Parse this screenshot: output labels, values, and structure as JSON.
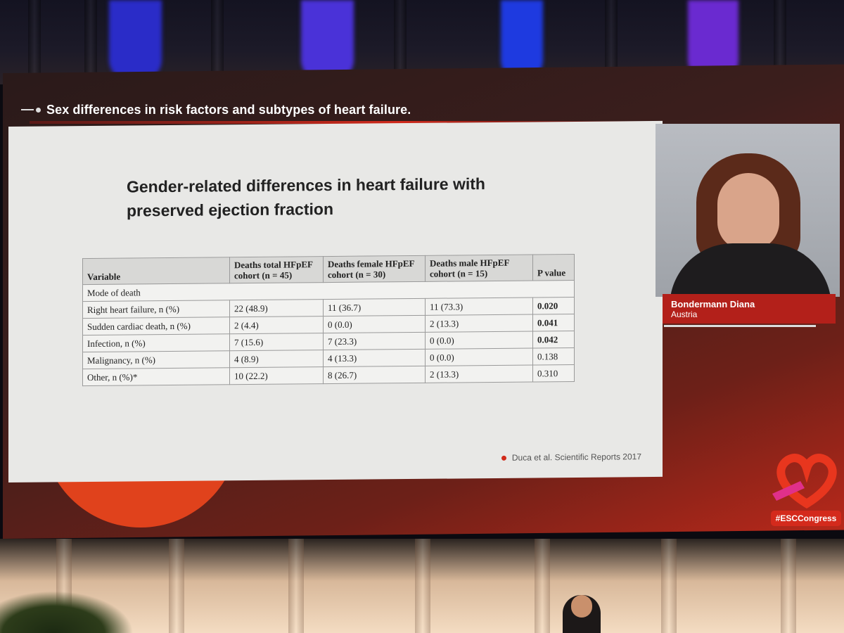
{
  "header": {
    "title": "Sex differences in risk factors and subtypes of heart failure."
  },
  "slide": {
    "title": "Gender-related differences in heart failure with preserved ejection fraction",
    "table": {
      "headers": [
        "Variable",
        "Deaths total HFpEF cohort (n = 45)",
        "Deaths female HFpEF cohort (n = 30)",
        "Deaths male HFpEF cohort (n = 15)",
        "P value"
      ],
      "section_label": "Mode of death",
      "rows": [
        {
          "variable": "Right heart failure, n (%)",
          "total": "22 (48.9)",
          "female": "11 (36.7)",
          "male": "11 (73.3)",
          "p": "0.020",
          "bold": true
        },
        {
          "variable": "Sudden cardiac death, n (%)",
          "total": "2 (4.4)",
          "female": "0 (0.0)",
          "male": "2 (13.3)",
          "p": "0.041",
          "bold": true
        },
        {
          "variable": "Infection, n (%)",
          "total": "7 (15.6)",
          "female": "7 (23.3)",
          "male": "0 (0.0)",
          "p": "0.042",
          "bold": true
        },
        {
          "variable": "Malignancy, n (%)",
          "total": "4 (8.9)",
          "female": "4 (13.3)",
          "male": "0 (0.0)",
          "p": "0.138",
          "bold": false
        },
        {
          "variable": "Other, n (%)*",
          "total": "10 (22.2)",
          "female": "8 (26.7)",
          "male": "2 (13.3)",
          "p": "0.310",
          "bold": false
        }
      ]
    },
    "citation": "Duca et al. Scientific Reports 2017"
  },
  "speaker": {
    "name": "Bondermann Diana",
    "country": "Austria"
  },
  "branding": {
    "hashtag": "#ESCCongress",
    "accent_color": "#d42a1c"
  }
}
